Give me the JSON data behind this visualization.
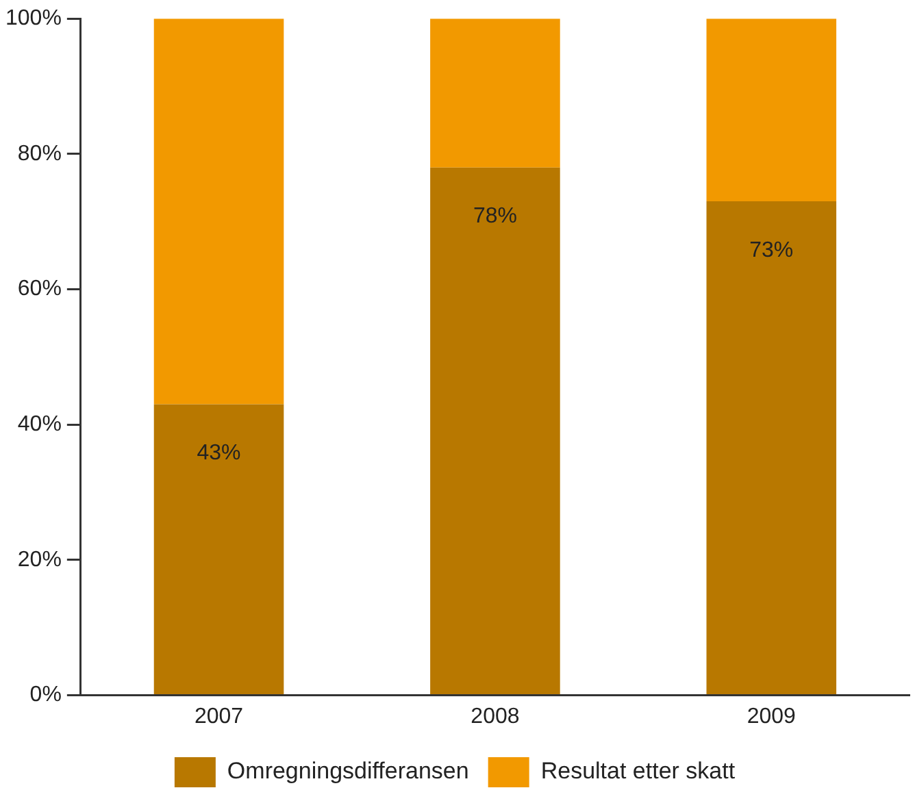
{
  "chart_data": {
    "type": "bar",
    "stacked": true,
    "categories": [
      "2007",
      "2008",
      "2009"
    ],
    "series": [
      {
        "name": "Omregningsdifferansen",
        "color": "#b87800",
        "values": [
          43,
          78,
          73
        ],
        "value_labels": [
          "43%",
          "78%",
          "73%"
        ]
      },
      {
        "name": "Resultat etter skatt",
        "color": "#f29900",
        "values": [
          57,
          22,
          27
        ]
      }
    ],
    "ylim": [
      0,
      100
    ],
    "yticks": [
      {
        "value": 0,
        "label": "0%"
      },
      {
        "value": 20,
        "label": "20%"
      },
      {
        "value": 40,
        "label": "40%"
      },
      {
        "value": 60,
        "label": "60%"
      },
      {
        "value": 80,
        "label": "80%"
      },
      {
        "value": 100,
        "label": "100%"
      }
    ],
    "grid": false,
    "legend": "bottom"
  }
}
